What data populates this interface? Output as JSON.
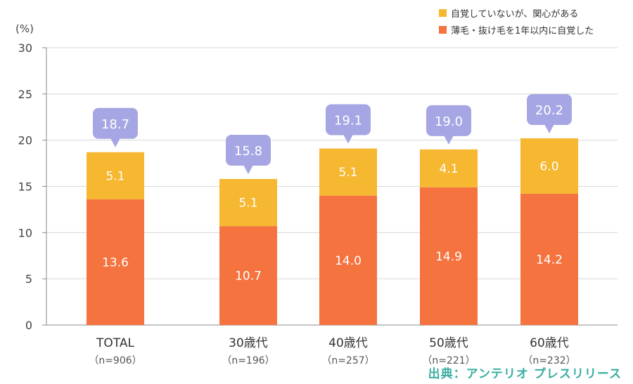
{
  "chart_data": {
    "type": "bar",
    "stacked": true,
    "categories": [
      "TOTAL",
      "30歳代",
      "40歳代",
      "50歳代",
      "60歳代"
    ],
    "sample_sizes": [
      "（n=906）",
      "（n=196）",
      "（n=257）",
      "（n=221）",
      "（n=232）"
    ],
    "series": [
      {
        "name": "薄毛・抜け毛を1年以内に自覚した",
        "values": [
          13.6,
          10.7,
          14.0,
          14.9,
          14.2
        ],
        "color": "#f4733f"
      },
      {
        "name": "自覚していないが、関心がある",
        "values": [
          5.1,
          5.1,
          5.1,
          4.1,
          6.0
        ],
        "color": "#f6b731"
      }
    ],
    "totals": [
      "18.7",
      "15.8",
      "19.1",
      "19.0",
      "20.2"
    ],
    "segment_labels": [
      [
        "13.6",
        "10.7",
        "14.0",
        "14.9",
        "14.2"
      ],
      [
        "5.1",
        "5.1",
        "5.1",
        "4.1",
        "6.0"
      ]
    ],
    "ylabel": "(%)",
    "ylim": [
      0,
      30
    ],
    "yticks": [
      0,
      5,
      10,
      15,
      20,
      25,
      30
    ],
    "grid": true,
    "legend_position": "top-right",
    "bubble_color": "#a6a6e4"
  },
  "source": "出典：アンテリオ プレスリリース"
}
